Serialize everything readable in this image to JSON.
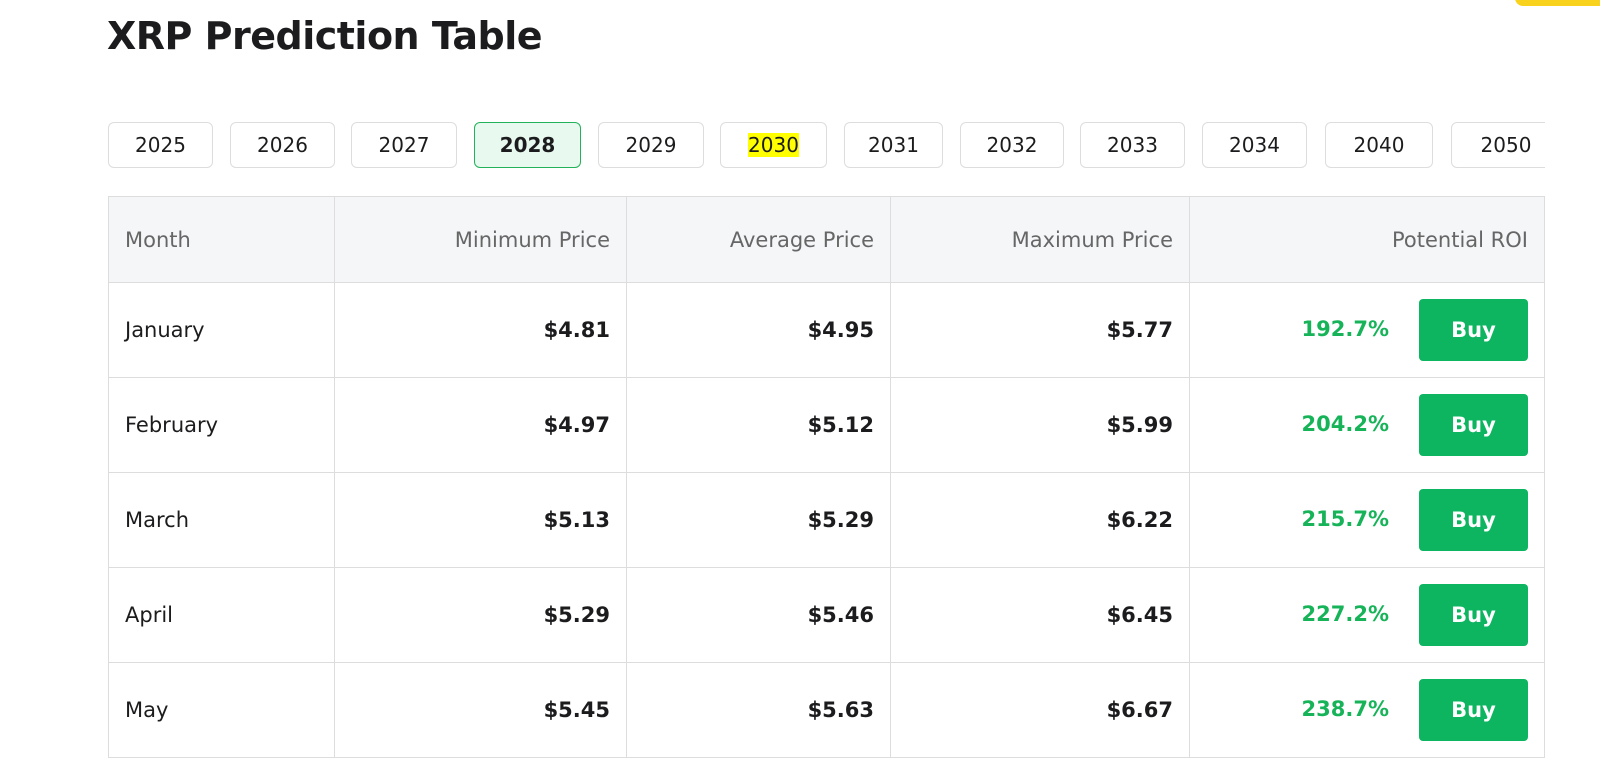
{
  "title": "XRP Prediction Table",
  "years": [
    {
      "label": "2025"
    },
    {
      "label": "2026"
    },
    {
      "label": "2027"
    },
    {
      "label": "2028",
      "active": true
    },
    {
      "label": "2029"
    },
    {
      "label": "2030",
      "highlighted": true
    },
    {
      "label": "2031"
    },
    {
      "label": "2032"
    },
    {
      "label": "2033"
    },
    {
      "label": "2034"
    },
    {
      "label": "2040"
    },
    {
      "label": "2050"
    }
  ],
  "table": {
    "headers": [
      "Month",
      "Minimum Price",
      "Average Price",
      "Maximum Price",
      "Potential ROI"
    ],
    "rows": [
      {
        "month": "January",
        "min": "$4.81",
        "avg": "$4.95",
        "max": "$5.77",
        "roi": "192.7%",
        "action": "Buy"
      },
      {
        "month": "February",
        "min": "$4.97",
        "avg": "$5.12",
        "max": "$5.99",
        "roi": "204.2%",
        "action": "Buy"
      },
      {
        "month": "March",
        "min": "$5.13",
        "avg": "$5.29",
        "max": "$6.22",
        "roi": "215.7%",
        "action": "Buy"
      },
      {
        "month": "April",
        "min": "$5.29",
        "avg": "$5.46",
        "max": "$6.45",
        "roi": "227.2%",
        "action": "Buy"
      },
      {
        "month": "May",
        "min": "$5.45",
        "avg": "$5.63",
        "max": "$6.67",
        "roi": "238.7%",
        "action": "Buy"
      }
    ]
  },
  "colors": {
    "accent": "#0db560",
    "roi": "#16b358",
    "highlight": "#ffff00"
  }
}
